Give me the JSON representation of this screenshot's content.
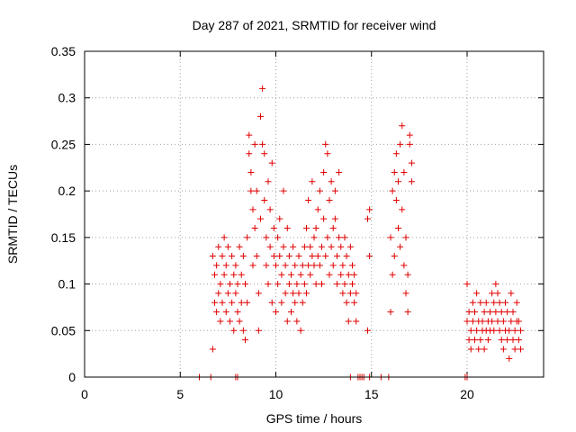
{
  "chart_data": {
    "type": "scatter",
    "title": "Day 287 of 2021, SRMTID for receiver wind",
    "xlabel": "GPS time / hours",
    "ylabel": "SRMTID / TECUs",
    "xlim": [
      0,
      24
    ],
    "ylim": [
      0,
      0.35
    ],
    "xticks": [
      0,
      5,
      10,
      15,
      20
    ],
    "xtick_labels": [
      "0",
      "5",
      "10",
      "15",
      "20"
    ],
    "yticks": [
      0,
      0.05,
      0.1,
      0.15,
      0.2,
      0.25,
      0.3,
      0.35
    ],
    "ytick_labels": [
      "0",
      "0.05",
      "0.1",
      "0.15",
      "0.2",
      "0.25",
      "0.3",
      "0.35"
    ],
    "grid": true,
    "legend": "none",
    "marker": "plus",
    "color": "#e00000",
    "series": [
      {
        "points": [
          [
            6.0,
            0.0
          ],
          [
            6.6,
            0.0
          ],
          [
            7.9,
            0.0
          ],
          [
            8.0,
            0.0
          ],
          [
            13.9,
            0.0
          ],
          [
            14.3,
            0.0
          ],
          [
            14.4,
            0.0
          ],
          [
            14.5,
            0.0
          ],
          [
            14.6,
            0.0
          ],
          [
            14.9,
            0.0
          ],
          [
            15.5,
            0.0
          ],
          [
            15.9,
            0.0
          ],
          [
            19.9,
            0.0
          ],
          [
            20.0,
            0.0
          ],
          [
            6.7,
            0.03
          ],
          [
            6.7,
            0.13
          ],
          [
            6.8,
            0.11
          ],
          [
            6.8,
            0.08
          ],
          [
            6.9,
            0.07
          ],
          [
            6.9,
            0.12
          ],
          [
            7.0,
            0.09
          ],
          [
            7.0,
            0.14
          ],
          [
            7.1,
            0.06
          ],
          [
            7.1,
            0.1
          ],
          [
            7.2,
            0.13
          ],
          [
            7.2,
            0.08
          ],
          [
            7.3,
            0.11
          ],
          [
            7.3,
            0.15
          ],
          [
            7.4,
            0.07
          ],
          [
            7.4,
            0.12
          ],
          [
            7.5,
            0.09
          ],
          [
            7.5,
            0.14
          ],
          [
            7.6,
            0.1
          ],
          [
            7.6,
            0.06
          ],
          [
            7.7,
            0.13
          ],
          [
            7.7,
            0.08
          ],
          [
            7.8,
            0.11
          ],
          [
            7.8,
            0.05
          ],
          [
            7.9,
            0.09
          ],
          [
            7.9,
            0.12
          ],
          [
            8.0,
            0.07
          ],
          [
            8.0,
            0.1
          ],
          [
            8.1,
            0.14
          ],
          [
            8.1,
            0.06
          ],
          [
            8.2,
            0.11
          ],
          [
            8.2,
            0.08
          ],
          [
            8.3,
            0.13
          ],
          [
            8.3,
            0.05
          ],
          [
            8.4,
            0.1
          ],
          [
            8.4,
            0.04
          ],
          [
            8.5,
            0.08
          ],
          [
            8.5,
            0.15
          ],
          [
            8.6,
            0.26
          ],
          [
            8.6,
            0.24
          ],
          [
            8.7,
            0.2
          ],
          [
            8.7,
            0.22
          ],
          [
            8.8,
            0.18
          ],
          [
            8.8,
            0.12
          ],
          [
            8.9,
            0.25
          ],
          [
            8.9,
            0.16
          ],
          [
            9.0,
            0.2
          ],
          [
            9.0,
            0.13
          ],
          [
            9.1,
            0.09
          ],
          [
            9.1,
            0.05
          ],
          [
            9.2,
            0.17
          ],
          [
            9.2,
            0.28
          ],
          [
            9.3,
            0.31
          ],
          [
            9.3,
            0.25
          ],
          [
            9.4,
            0.24
          ],
          [
            9.4,
            0.19
          ],
          [
            9.5,
            0.15
          ],
          [
            9.5,
            0.12
          ],
          [
            9.6,
            0.21
          ],
          [
            9.6,
            0.1
          ],
          [
            9.7,
            0.18
          ],
          [
            9.7,
            0.14
          ],
          [
            9.8,
            0.23
          ],
          [
            9.8,
            0.08
          ],
          [
            9.9,
            0.13
          ],
          [
            9.9,
            0.16
          ],
          [
            10.0,
            0.12
          ],
          [
            10.0,
            0.07
          ],
          [
            10.1,
            0.15
          ],
          [
            10.1,
            0.1
          ],
          [
            10.2,
            0.13
          ],
          [
            10.2,
            0.17
          ],
          [
            10.3,
            0.11
          ],
          [
            10.3,
            0.08
          ],
          [
            10.4,
            0.14
          ],
          [
            10.4,
            0.2
          ],
          [
            10.5,
            0.12
          ],
          [
            10.5,
            0.09
          ],
          [
            10.6,
            0.16
          ],
          [
            10.6,
            0.06
          ],
          [
            10.7,
            0.1
          ],
          [
            10.7,
            0.13
          ],
          [
            10.8,
            0.07
          ],
          [
            10.8,
            0.11
          ],
          [
            10.9,
            0.09
          ],
          [
            10.9,
            0.14
          ],
          [
            11.0,
            0.08
          ],
          [
            11.0,
            0.12
          ],
          [
            11.1,
            0.06
          ],
          [
            11.1,
            0.1
          ],
          [
            11.2,
            0.13
          ],
          [
            11.2,
            0.09
          ],
          [
            11.3,
            0.11
          ],
          [
            11.3,
            0.05
          ],
          [
            11.4,
            0.08
          ],
          [
            11.4,
            0.12
          ],
          [
            11.5,
            0.1
          ],
          [
            11.5,
            0.14
          ],
          [
            11.6,
            0.09
          ],
          [
            11.6,
            0.16
          ],
          [
            11.7,
            0.12
          ],
          [
            11.7,
            0.19
          ],
          [
            11.8,
            0.11
          ],
          [
            11.8,
            0.14
          ],
          [
            11.9,
            0.13
          ],
          [
            11.9,
            0.21
          ],
          [
            12.0,
            0.12
          ],
          [
            12.0,
            0.15
          ],
          [
            12.1,
            0.16
          ],
          [
            12.1,
            0.1
          ],
          [
            12.2,
            0.18
          ],
          [
            12.2,
            0.13
          ],
          [
            12.3,
            0.12
          ],
          [
            12.3,
            0.2
          ],
          [
            12.4,
            0.14
          ],
          [
            12.4,
            0.1
          ],
          [
            12.5,
            0.22
          ],
          [
            12.5,
            0.17
          ],
          [
            12.6,
            0.25
          ],
          [
            12.6,
            0.13
          ],
          [
            12.7,
            0.24
          ],
          [
            12.7,
            0.15
          ],
          [
            12.8,
            0.19
          ],
          [
            12.8,
            0.11
          ],
          [
            12.9,
            0.21
          ],
          [
            12.9,
            0.14
          ],
          [
            13.0,
            0.16
          ],
          [
            13.0,
            0.12
          ],
          [
            13.1,
            0.2
          ],
          [
            13.1,
            0.17
          ],
          [
            13.2,
            0.13
          ],
          [
            13.2,
            0.1
          ],
          [
            13.3,
            0.22
          ],
          [
            13.3,
            0.15
          ],
          [
            13.4,
            0.11
          ],
          [
            13.4,
            0.14
          ],
          [
            13.5,
            0.09
          ],
          [
            13.5,
            0.12
          ],
          [
            13.6,
            0.1
          ],
          [
            13.6,
            0.15
          ],
          [
            13.7,
            0.08
          ],
          [
            13.7,
            0.13
          ],
          [
            13.8,
            0.06
          ],
          [
            13.8,
            0.11
          ],
          [
            13.9,
            0.14
          ],
          [
            13.9,
            0.09
          ],
          [
            14.0,
            0.1
          ],
          [
            14.0,
            0.12
          ],
          [
            14.1,
            0.08
          ],
          [
            14.1,
            0.11
          ],
          [
            14.2,
            0.06
          ],
          [
            14.2,
            0.09
          ],
          [
            14.8,
            0.17
          ],
          [
            14.8,
            0.05
          ],
          [
            14.9,
            0.13
          ],
          [
            14.9,
            0.18
          ],
          [
            16.0,
            0.07
          ],
          [
            16.0,
            0.15
          ],
          [
            16.1,
            0.11
          ],
          [
            16.1,
            0.2
          ],
          [
            16.2,
            0.22
          ],
          [
            16.2,
            0.13
          ],
          [
            16.3,
            0.19
          ],
          [
            16.3,
            0.24
          ],
          [
            16.4,
            0.16
          ],
          [
            16.4,
            0.21
          ],
          [
            16.5,
            0.14
          ],
          [
            16.5,
            0.25
          ],
          [
            16.6,
            0.18
          ],
          [
            16.6,
            0.27
          ],
          [
            16.7,
            0.12
          ],
          [
            16.7,
            0.22
          ],
          [
            16.8,
            0.09
          ],
          [
            16.8,
            0.15
          ],
          [
            16.9,
            0.07
          ],
          [
            16.9,
            0.11
          ],
          [
            17.0,
            0.25
          ],
          [
            17.0,
            0.26
          ],
          [
            17.1,
            0.21
          ],
          [
            17.1,
            0.23
          ],
          [
            20.0,
            0.06
          ],
          [
            20.0,
            0.1
          ],
          [
            20.1,
            0.04
          ],
          [
            20.1,
            0.07
          ],
          [
            20.2,
            0.05
          ],
          [
            20.2,
            0.03
          ],
          [
            20.3,
            0.06
          ],
          [
            20.3,
            0.08
          ],
          [
            20.4,
            0.04
          ],
          [
            20.4,
            0.07
          ],
          [
            20.5,
            0.05
          ],
          [
            20.5,
            0.09
          ],
          [
            20.6,
            0.03
          ],
          [
            20.6,
            0.06
          ],
          [
            20.7,
            0.08
          ],
          [
            20.7,
            0.04
          ],
          [
            20.8,
            0.06
          ],
          [
            20.8,
            0.05
          ],
          [
            20.9,
            0.07
          ],
          [
            20.9,
            0.03
          ],
          [
            21.0,
            0.05
          ],
          [
            21.0,
            0.08
          ],
          [
            21.1,
            0.06
          ],
          [
            21.1,
            0.04
          ],
          [
            21.2,
            0.07
          ],
          [
            21.2,
            0.05
          ],
          [
            21.3,
            0.09
          ],
          [
            21.3,
            0.06
          ],
          [
            21.4,
            0.08
          ],
          [
            21.4,
            0.05
          ],
          [
            21.5,
            0.07
          ],
          [
            21.5,
            0.1
          ],
          [
            21.6,
            0.06
          ],
          [
            21.6,
            0.09
          ],
          [
            21.7,
            0.08
          ],
          [
            21.7,
            0.05
          ],
          [
            21.8,
            0.07
          ],
          [
            21.8,
            0.04
          ],
          [
            21.9,
            0.06
          ],
          [
            21.9,
            0.03
          ],
          [
            22.0,
            0.05
          ],
          [
            22.0,
            0.08
          ],
          [
            22.1,
            0.04
          ],
          [
            22.1,
            0.07
          ],
          [
            22.2,
            0.05
          ],
          [
            22.2,
            0.02
          ],
          [
            22.3,
            0.06
          ],
          [
            22.3,
            0.09
          ],
          [
            22.4,
            0.04
          ],
          [
            22.4,
            0.07
          ],
          [
            22.5,
            0.05
          ],
          [
            22.5,
            0.03
          ],
          [
            22.6,
            0.06
          ],
          [
            22.6,
            0.08
          ],
          [
            22.7,
            0.04
          ],
          [
            22.7,
            0.06
          ],
          [
            22.8,
            0.05
          ],
          [
            22.8,
            0.03
          ]
        ]
      }
    ]
  }
}
